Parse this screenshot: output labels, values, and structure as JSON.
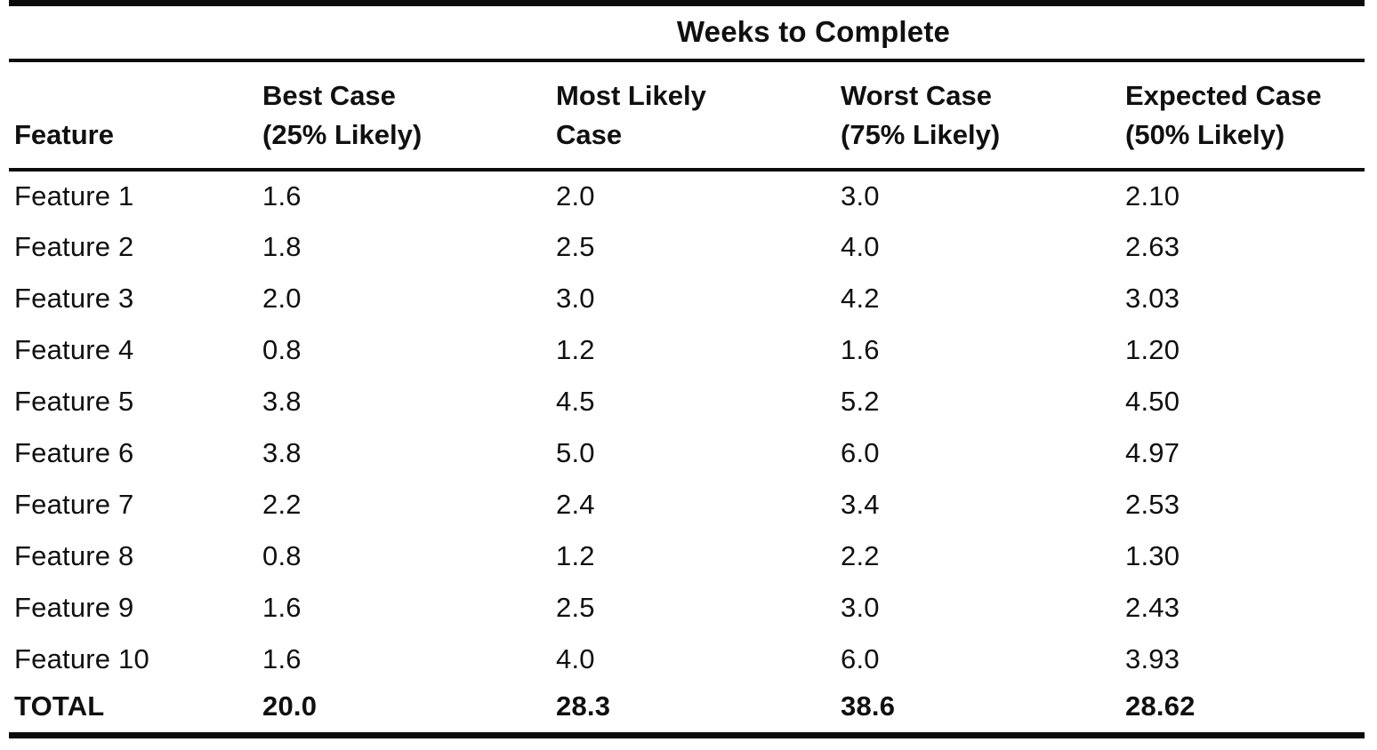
{
  "table": {
    "title": "Weeks to Complete",
    "feature_header": "Feature",
    "columns": [
      "Best Case\n(25% Likely)",
      "Most Likely\nCase",
      "Worst Case\n(75% Likely)",
      "Expected Case\n(50% Likely)"
    ],
    "rows": [
      {
        "feature": "Feature 1",
        "best": "1.6",
        "most_likely": "2.0",
        "worst": "3.0",
        "expected": "2.10"
      },
      {
        "feature": "Feature 2",
        "best": "1.8",
        "most_likely": "2.5",
        "worst": "4.0",
        "expected": "2.63"
      },
      {
        "feature": "Feature 3",
        "best": "2.0",
        "most_likely": "3.0",
        "worst": "4.2",
        "expected": "3.03"
      },
      {
        "feature": "Feature 4",
        "best": "0.8",
        "most_likely": "1.2",
        "worst": "1.6",
        "expected": "1.20"
      },
      {
        "feature": "Feature 5",
        "best": "3.8",
        "most_likely": "4.5",
        "worst": "5.2",
        "expected": "4.50"
      },
      {
        "feature": "Feature 6",
        "best": "3.8",
        "most_likely": "5.0",
        "worst": "6.0",
        "expected": "4.97"
      },
      {
        "feature": "Feature 7",
        "best": "2.2",
        "most_likely": "2.4",
        "worst": "3.4",
        "expected": "2.53"
      },
      {
        "feature": "Feature 8",
        "best": "0.8",
        "most_likely": "1.2",
        "worst": "2.2",
        "expected": "1.30"
      },
      {
        "feature": "Feature 9",
        "best": "1.6",
        "most_likely": "2.5",
        "worst": "3.0",
        "expected": "2.43"
      },
      {
        "feature": "Feature 10",
        "best": "1.6",
        "most_likely": "4.0",
        "worst": "6.0",
        "expected": "3.93"
      },
      {
        "feature": "TOTAL",
        "best": "20.0",
        "most_likely": "28.3",
        "worst": "38.6",
        "expected": "28.62"
      }
    ]
  },
  "colors": {
    "text": "#101010",
    "background": "#ffffff",
    "rule": "#0c0c0c"
  }
}
